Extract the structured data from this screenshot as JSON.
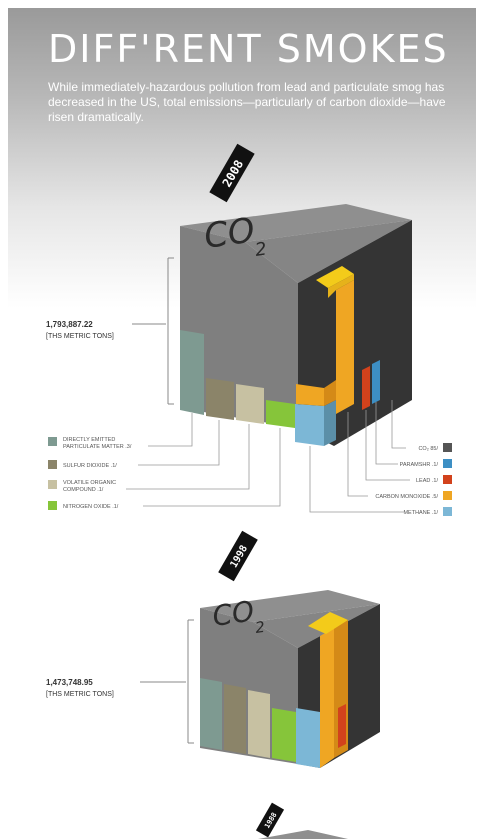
{
  "header": {
    "title": "DIFF'RENT SMOKES",
    "subtitle": "While immediately-hazardous pollution from lead and particulate smog has decreased in the US, total emissions—particularly of carbon dioxide—have risen dramatically."
  },
  "cubes": [
    {
      "year": "2008",
      "label": "CO",
      "label_sub": "2",
      "total_value": "1,793,887.22",
      "total_unit": "[THS METRIC TONS]"
    },
    {
      "year": "1998",
      "label": "CO",
      "label_sub": "2",
      "total_value": "1,473,748.95",
      "total_unit": "[THS METRIC TONS]"
    },
    {
      "year": "1988"
    }
  ],
  "legend": {
    "left": [
      {
        "label_line1": "DIRECTLY EMITTED",
        "label_line2": "PARTICULATE MATTER .3/",
        "color": "#7e9a91"
      },
      {
        "label_line1": "SULFUR DIOXIDE .1/",
        "label_line2": "",
        "color": "#8b8469"
      },
      {
        "label_line1": "VOLATILE ORGANIC",
        "label_line2": "COMPOUND .1/",
        "color": "#c7c1a2"
      },
      {
        "label_line1": "NITROGEN OXIDE .1/",
        "label_line2": "",
        "color": "#86c53a"
      }
    ],
    "right": [
      {
        "label": "CO₂ 85/",
        "color": "#555555"
      },
      {
        "label": "PARAMSHR .1/",
        "color": "#3d8fc4"
      },
      {
        "label": "LEAD .1/",
        "color": "#d2421c"
      },
      {
        "label": "CARBON MONOXIDE .5/",
        "color": "#efa623"
      },
      {
        "label": "METHANE .1/",
        "color": "#7cb7d6"
      }
    ]
  },
  "colors": {
    "cube_top": "#8f8f8f",
    "cube_front": "#7d7d7d",
    "cube_side": "#333333",
    "orange": "#efa623",
    "yellow": "#f3cb1a",
    "year_tag_bg": "#111111"
  }
}
